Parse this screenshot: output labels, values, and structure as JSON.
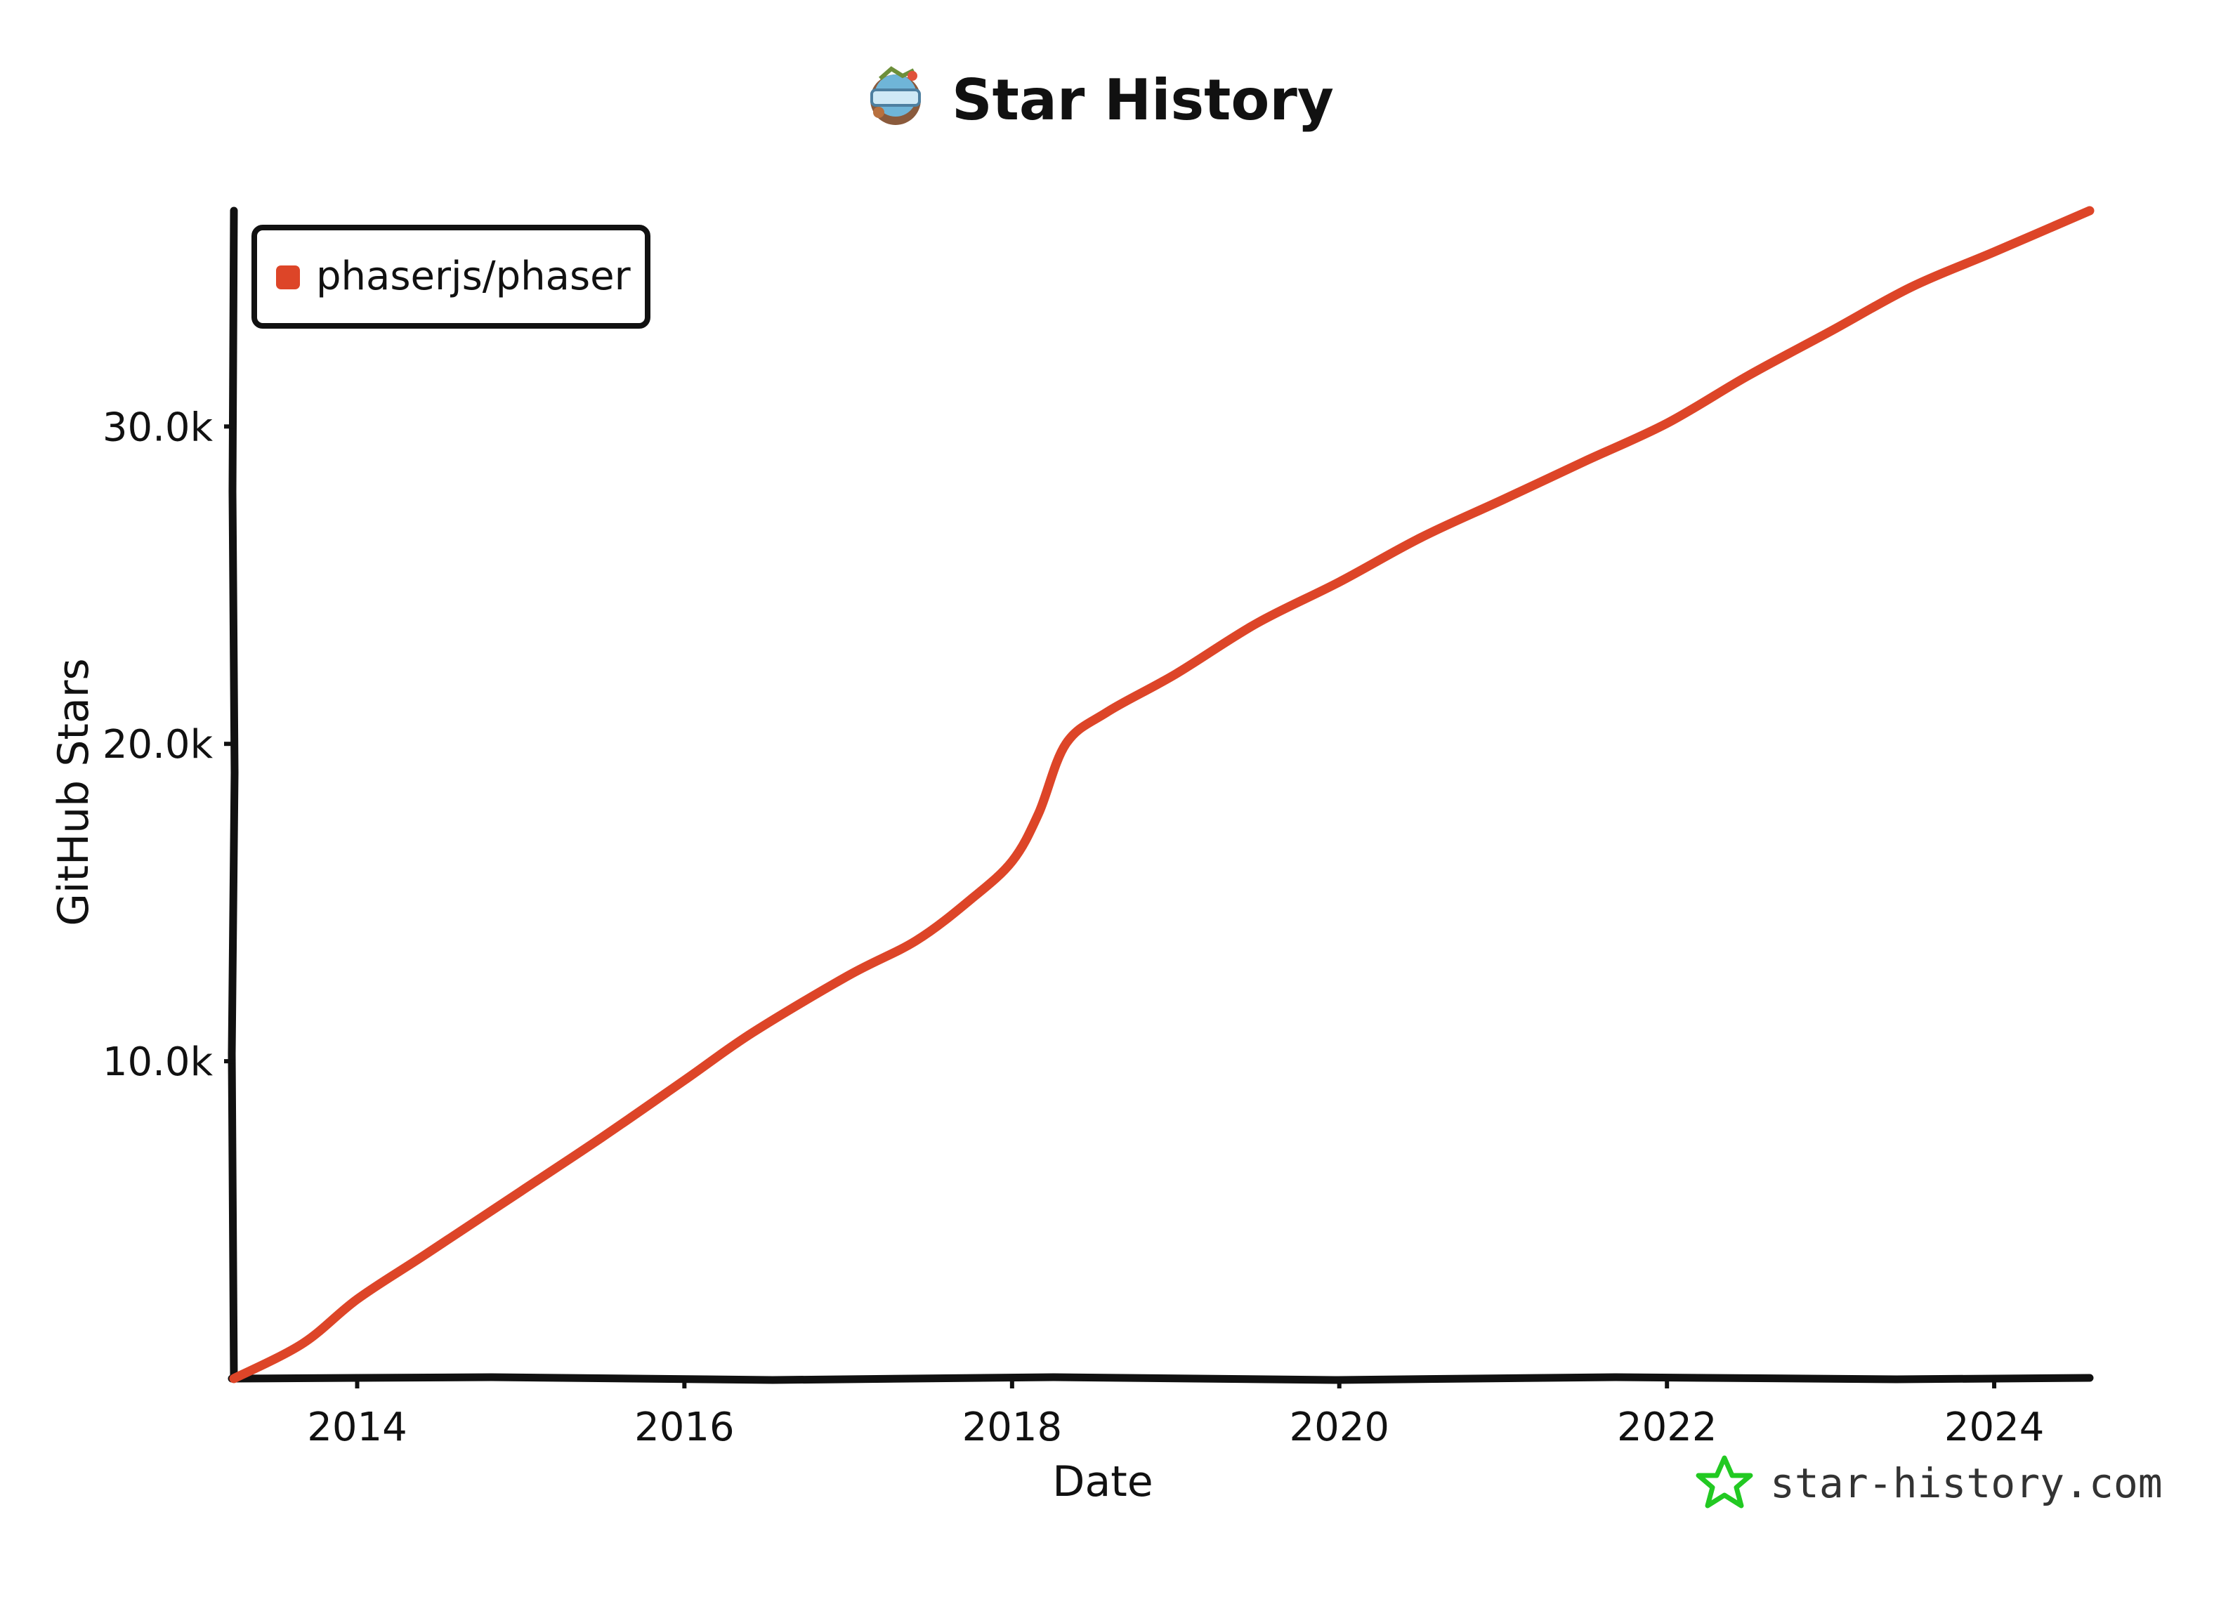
{
  "chart_data": {
    "type": "line",
    "title": "Star History",
    "xlabel": "Date",
    "ylabel": "GitHub Stars",
    "x_ticks": [
      "2014",
      "2016",
      "2018",
      "2020",
      "2022",
      "2024"
    ],
    "y_ticks": [
      "10.0k",
      "20.0k",
      "30.0k"
    ],
    "legend_position": "top-left",
    "grid": false,
    "xlim": [
      "2013-04-01",
      "2024-08-01"
    ],
    "ylim": [
      0,
      36800
    ],
    "series": [
      {
        "name": "phaserjs/phaser",
        "color": "#dd4528",
        "points": [
          [
            "2013-04-01",
            0
          ],
          [
            "2013-09-01",
            1100
          ],
          [
            "2014-01-01",
            2500
          ],
          [
            "2014-06-01",
            3900
          ],
          [
            "2015-01-01",
            5900
          ],
          [
            "2015-07-01",
            7600
          ],
          [
            "2016-01-01",
            9400
          ],
          [
            "2016-06-01",
            10900
          ],
          [
            "2017-01-01",
            12700
          ],
          [
            "2017-06-01",
            13800
          ],
          [
            "2017-10-01",
            15100
          ],
          [
            "2018-01-01",
            16300
          ],
          [
            "2018-03-01",
            17800
          ],
          [
            "2018-05-01",
            20000
          ],
          [
            "2018-08-01",
            21000
          ],
          [
            "2019-01-01",
            22200
          ],
          [
            "2019-07-01",
            23800
          ],
          [
            "2020-01-01",
            25100
          ],
          [
            "2020-07-01",
            26500
          ],
          [
            "2021-01-01",
            27700
          ],
          [
            "2021-07-01",
            28900
          ],
          [
            "2022-01-01",
            30100
          ],
          [
            "2022-07-01",
            31600
          ],
          [
            "2023-01-01",
            33000
          ],
          [
            "2023-07-01",
            34400
          ],
          [
            "2024-01-01",
            35500
          ],
          [
            "2024-08-01",
            36800
          ]
        ]
      }
    ]
  },
  "watermark": "star-history.com",
  "colors": {
    "line": "#dd4528",
    "axis": "#111111",
    "watermark_star": "#22c922"
  },
  "icons": {
    "title_logo": "phaser-logo-icon",
    "watermark_logo": "star-icon"
  }
}
